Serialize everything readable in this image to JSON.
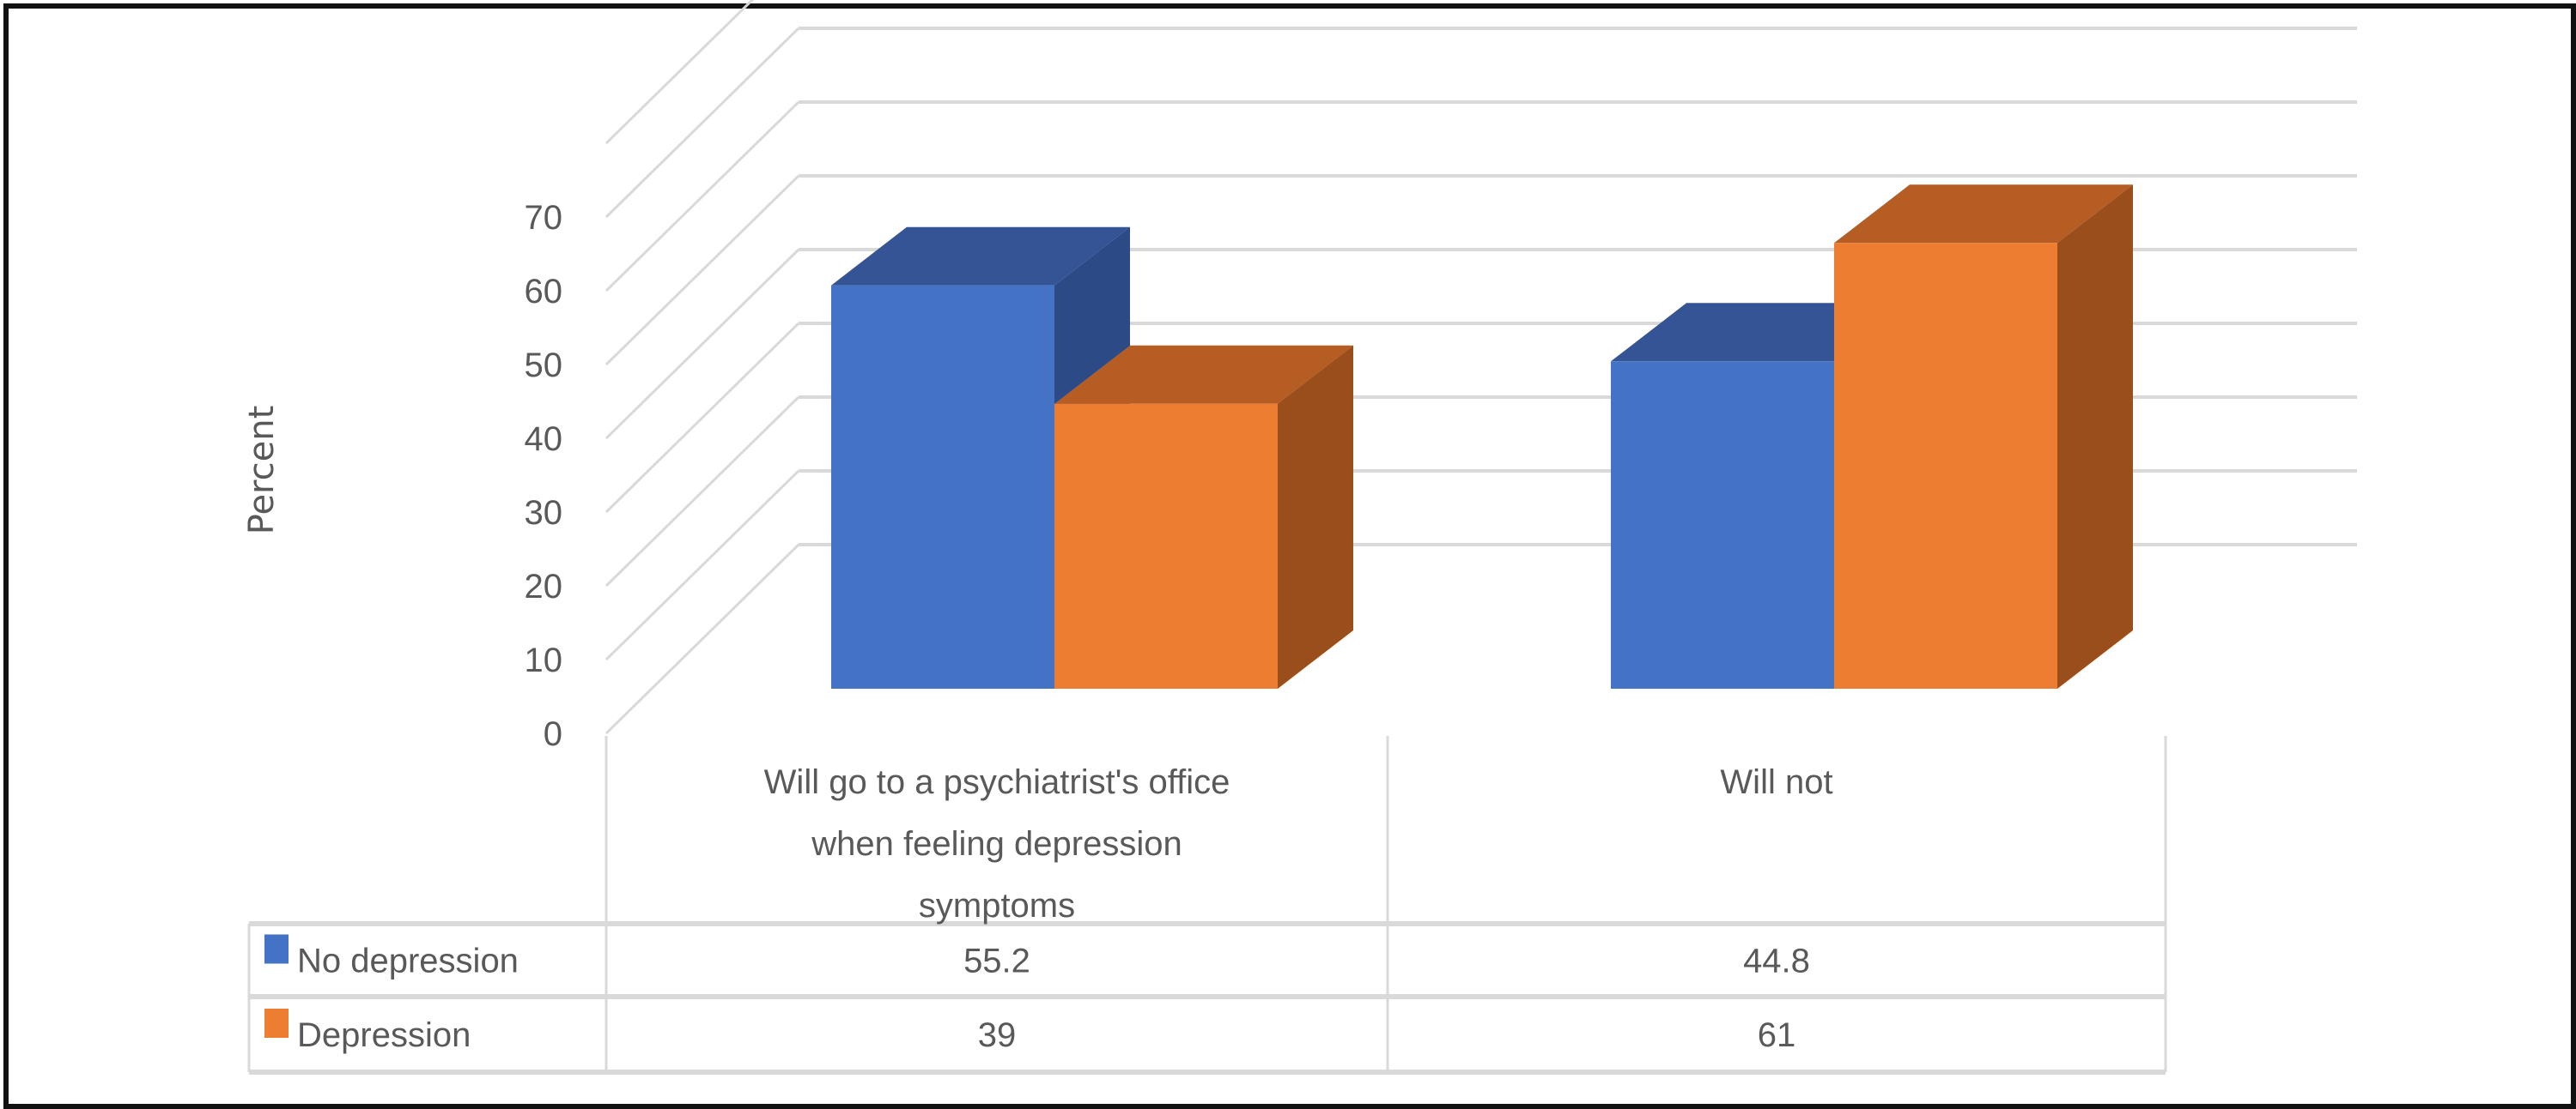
{
  "chart_data": {
    "type": "bar",
    "style": "3d-clustered-column-with-data-table",
    "title": "",
    "xlabel": "",
    "ylabel": "Percent",
    "ylim": [
      0,
      80
    ],
    "yticks": [
      "0",
      "10",
      "20",
      "30",
      "40",
      "50",
      "60",
      "70"
    ],
    "grid": true,
    "legend_position": "data-table",
    "categories": [
      [
        "Will go to a psychiatrist's office",
        "when feeling depression",
        "symptoms"
      ],
      [
        "Will not"
      ]
    ],
    "series": [
      {
        "name": "No depression",
        "color": "#4472C4",
        "values": [
          55.2,
          44.8
        ],
        "labels": [
          "55.2",
          "44.8"
        ]
      },
      {
        "name": "Depression",
        "color": "#ED7D31",
        "values": [
          39,
          61
        ],
        "labels": [
          "39",
          "61"
        ]
      }
    ]
  },
  "colors": {
    "blue_front": "#4472C4",
    "blue_top": "#345495",
    "blue_side": "#2C4A86",
    "orange_front": "#ED7D31",
    "orange_top": "#B55D22",
    "orange_side": "#9A4E1C",
    "grid": "#D9D9D9",
    "text": "#595959"
  }
}
